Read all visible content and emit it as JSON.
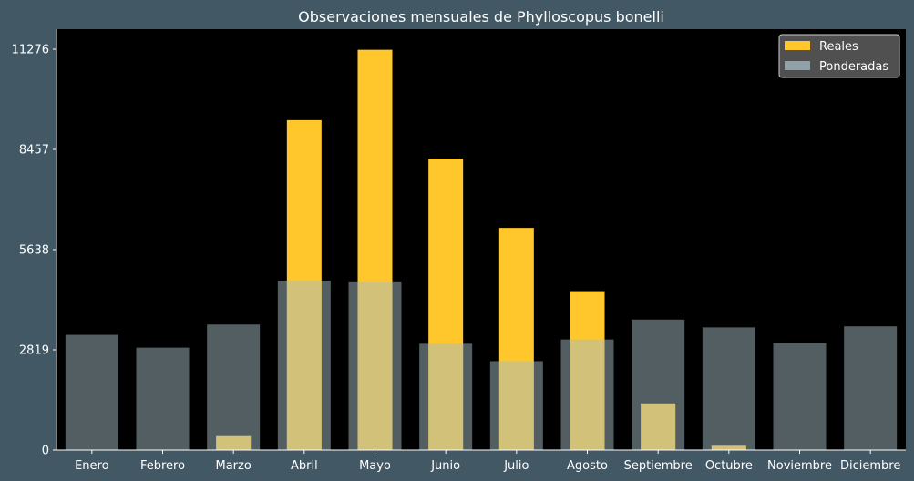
{
  "chart_data": {
    "type": "bar",
    "title": "Observaciones mensuales de Phylloscopus bonelli",
    "xlabel": "",
    "ylabel": "",
    "categories": [
      "Enero",
      "Febrero",
      "Marzo",
      "Abril",
      "Mayo",
      "Junio",
      "Julio",
      "Agosto",
      "Septiembre",
      "Octubre",
      "Noviembre",
      "Diciembre"
    ],
    "series": [
      {
        "name": "Reales",
        "color": "#ffc72c",
        "values": [
          0,
          0,
          390,
          9280,
          11260,
          8200,
          6250,
          4470,
          1310,
          120,
          0,
          0
        ]
      },
      {
        "name": "Ponderadas",
        "color": "#a5bcc4",
        "opacity": 0.5,
        "values": [
          3240,
          2880,
          3530,
          4760,
          4720,
          2990,
          2500,
          3110,
          3670,
          3450,
          3010,
          3480
        ]
      }
    ],
    "yticks": [
      0,
      2819,
      5638,
      8457,
      11276
    ],
    "ylim": [
      0,
      11840
    ],
    "legend_position": "top-right",
    "grid": false,
    "colors": {
      "page_background": "#425865",
      "plot_background": "#000000",
      "text": "#ffffff",
      "legend_background": "#595959"
    }
  }
}
